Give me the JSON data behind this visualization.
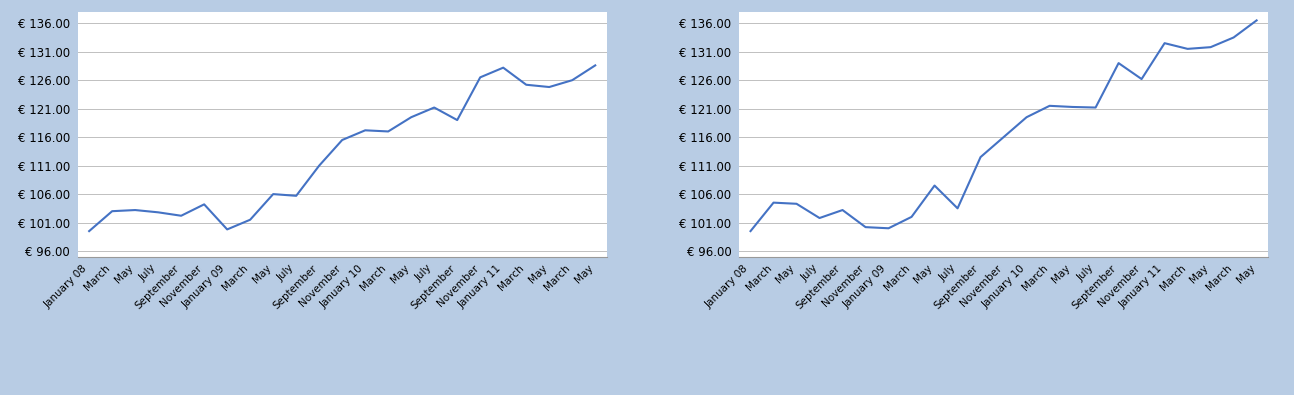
{
  "x_labels": [
    "January 08",
    "March",
    "May",
    "July",
    "September",
    "November",
    "January 09",
    "March",
    "May",
    "July",
    "September",
    "November",
    "January 10",
    "March",
    "May",
    "July",
    "September",
    "November",
    "January 11",
    "March",
    "May"
  ],
  "chart1_values": [
    99.5,
    103.0,
    103.2,
    102.8,
    102.2,
    104.2,
    99.8,
    101.5,
    106.0,
    105.7,
    111.0,
    115.5,
    117.2,
    117.0,
    119.5,
    121.2,
    119.0,
    126.5,
    128.2,
    125.2,
    124.8,
    126.0,
    128.6
  ],
  "chart2_values": [
    99.5,
    104.5,
    104.3,
    101.8,
    103.2,
    100.2,
    100.0,
    102.0,
    107.5,
    103.5,
    112.5,
    116.0,
    119.5,
    121.5,
    121.3,
    121.2,
    129.0,
    126.2,
    132.5,
    131.5,
    131.8,
    133.5,
    136.5
  ],
  "yticks": [
    96.0,
    101.0,
    106.0,
    111.0,
    116.0,
    121.0,
    126.0,
    131.0,
    136.0
  ],
  "ylim": [
    95.0,
    138.0
  ],
  "line_color": "#4472C4",
  "line_width": 1.5,
  "plot_bg": "#FFFFFF",
  "outer_bg": "#B8CCE4",
  "grid_color": "#C0C0C0",
  "tick_label_fontsize": 7.5,
  "ytick_label_fontsize": 8.5
}
